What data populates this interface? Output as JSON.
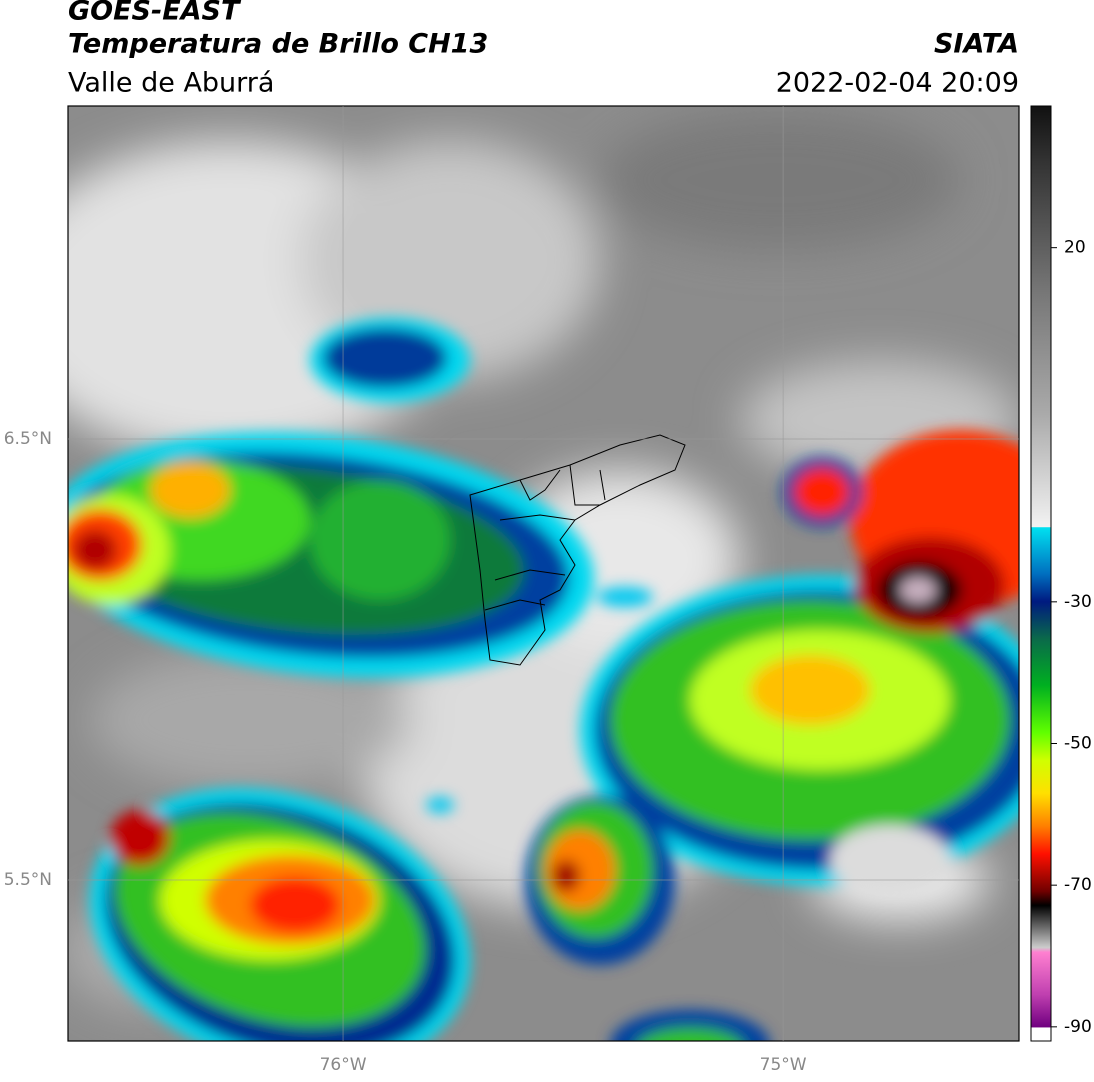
{
  "header": {
    "source": "GOES-EAST",
    "product": "Temperatura de Brillo CH13",
    "region": "Valle de Aburrá",
    "agency": "SIATA",
    "datetime": "2022-02-04 20:09"
  },
  "map": {
    "xlim": [
      -76.625,
      -74.464
    ],
    "ylim": [
      5.135,
      7.255
    ],
    "xticks": [
      {
        "value": -76,
        "label": "76°W"
      },
      {
        "value": -75,
        "label": "75°W"
      }
    ],
    "yticks": [
      {
        "value": 6.5,
        "label": "6.5°N"
      },
      {
        "value": 5.5,
        "label": "5.5°N"
      }
    ]
  },
  "colorbar": {
    "lim": [
      40,
      -92
    ],
    "ticks": [
      20,
      -30,
      -50,
      -70,
      -90
    ]
  }
}
